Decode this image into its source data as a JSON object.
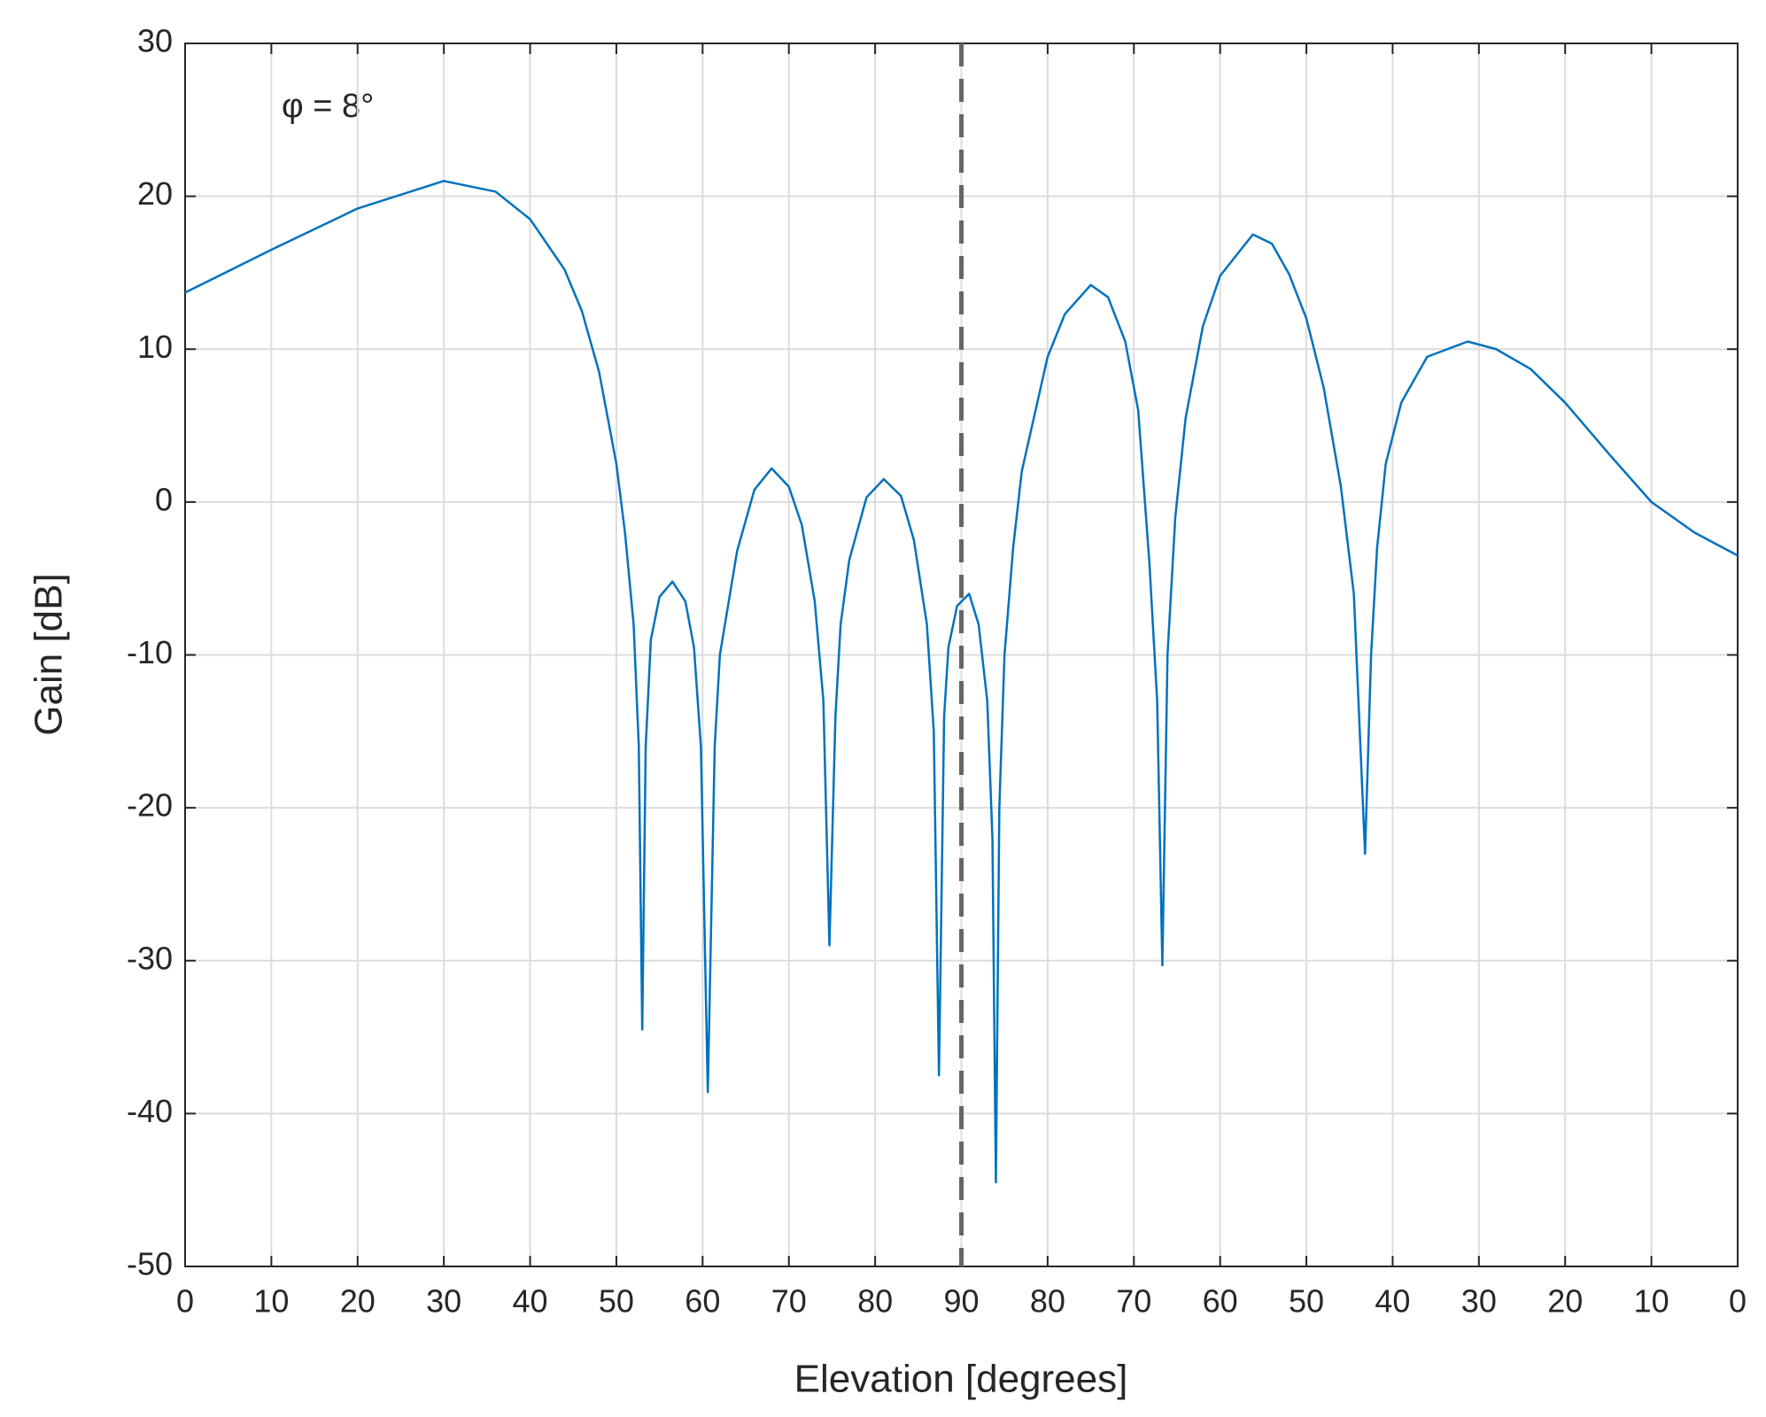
{
  "chart_data": {
    "type": "line",
    "xlabel": "Elevation [degrees]",
    "ylabel": "Gain [dB]",
    "annotation": "φ = 8°",
    "xlim": [
      0,
      180
    ],
    "ylim": [
      -50,
      30
    ],
    "xticks": [
      0,
      10,
      20,
      30,
      40,
      50,
      60,
      70,
      80,
      90,
      {
        "value": 100,
        "label": "80"
      },
      {
        "value": 110,
        "label": "70"
      },
      {
        "value": 120,
        "label": "60"
      },
      {
        "value": 130,
        "label": "50"
      },
      {
        "value": 140,
        "label": "40"
      },
      {
        "value": 150,
        "label": "30"
      },
      {
        "value": 160,
        "label": "20"
      },
      {
        "value": 170,
        "label": "10"
      },
      {
        "value": 180,
        "label": "0"
      }
    ],
    "yticks": [
      -50,
      -40,
      -30,
      -20,
      -10,
      0,
      10,
      20,
      30
    ],
    "grid": true,
    "vline": 90,
    "series": [
      {
        "color": "#0072bd",
        "x": [
          0,
          10,
          20,
          30,
          36,
          40,
          44,
          46,
          48,
          50,
          51,
          52,
          52.6,
          53,
          53.4,
          54,
          55,
          56.5,
          58,
          59,
          59.8,
          60.6,
          61.4,
          62,
          64,
          66,
          68,
          70,
          71.5,
          73,
          74,
          74.7,
          75.4,
          76,
          77,
          79,
          81,
          83,
          84.5,
          86,
          86.8,
          87.4,
          88,
          88.5,
          89.5,
          90.9,
          92,
          93,
          93.6,
          94,
          94.4,
          95,
          96,
          97,
          100,
          102,
          105,
          107,
          109,
          110.5,
          111.8,
          112.7,
          113.3,
          113.9,
          114.8,
          116,
          118,
          120,
          123.8,
          126,
          128,
          130,
          132,
          134,
          135.5,
          136.8,
          137.5,
          138.2,
          139.2,
          141,
          144,
          148.7,
          152,
          156,
          160,
          165,
          170,
          175,
          180
        ],
        "values": [
          13.7,
          16.5,
          19.2,
          21.0,
          20.3,
          18.5,
          15.2,
          12.5,
          8.5,
          2.5,
          -2,
          -8,
          -16,
          -34.5,
          -16,
          -9,
          -6.2,
          -5.2,
          -6.5,
          -9.5,
          -16,
          -38.6,
          -16,
          -10,
          -3.2,
          0.8,
          2.2,
          1.0,
          -1.5,
          -6.5,
          -13,
          -29,
          -14,
          -8,
          -3.8,
          0.3,
          1.5,
          0.4,
          -2.5,
          -8,
          -15,
          -37.5,
          -14,
          -9.5,
          -6.8,
          -6,
          -8,
          -13,
          -22,
          -44.5,
          -20,
          -10,
          -3,
          2,
          9.5,
          12.3,
          14.2,
          13.4,
          10.5,
          6,
          -4,
          -13,
          -30.3,
          -10,
          -1,
          5.5,
          11.5,
          14.8,
          17.5,
          16.9,
          14.9,
          12,
          7.5,
          1,
          -6,
          -23,
          -10,
          -3,
          2.5,
          6.5,
          9.5,
          10.5,
          10,
          8.7,
          6.5,
          3.2,
          0,
          -2,
          -3.5
        ]
      }
    ]
  }
}
